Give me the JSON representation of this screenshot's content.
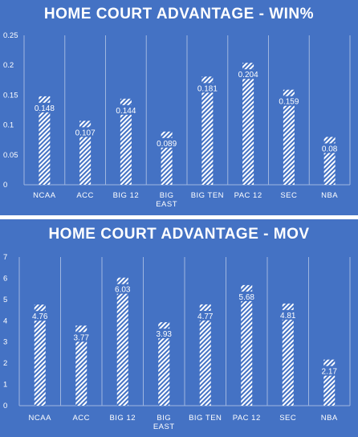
{
  "colors": {
    "background": "#4472c4",
    "bar_fill": "#ffffff",
    "gridline": "#9fb6e0",
    "text": "#ffffff"
  },
  "chart_data": [
    {
      "type": "bar",
      "title": "HOME COURT ADVANTAGE - WIN%",
      "categories": [
        "NCAA",
        "ACC",
        "BIG 12",
        "BIG EAST",
        "BIG TEN",
        "PAC 12",
        "SEC",
        "NBA"
      ],
      "values": [
        0.148,
        0.107,
        0.144,
        0.089,
        0.181,
        0.204,
        0.159,
        0.08
      ],
      "data_labels": [
        "0.148",
        "0.107",
        "0.144",
        "0.089",
        "0.181",
        "0.204",
        "0.159",
        "0.08"
      ],
      "y_ticks": [
        "0",
        "0.05",
        "0.1",
        "0.15",
        "0.2",
        "0.25"
      ],
      "ylim": [
        0,
        0.25
      ],
      "xlabel": "",
      "ylabel": "",
      "bar_pattern": "diagonal-hatch",
      "grid": "vertical-category-separators"
    },
    {
      "type": "bar",
      "title": "HOME COURT ADVANTAGE - MOV",
      "categories": [
        "NCAA",
        "ACC",
        "BIG 12",
        "BIG EAST",
        "BIG TEN",
        "PAC 12",
        "SEC",
        "NBA"
      ],
      "values": [
        4.76,
        3.77,
        6.03,
        3.93,
        4.77,
        5.68,
        4.81,
        2.17
      ],
      "data_labels": [
        "4.76",
        "3.77",
        "6.03",
        "3.93",
        "4.77",
        "5.68",
        "4.81",
        "2.17"
      ],
      "y_ticks": [
        "0",
        "1",
        "2",
        "3",
        "4",
        "5",
        "6",
        "7"
      ],
      "ylim": [
        0,
        7
      ],
      "xlabel": "",
      "ylabel": "",
      "bar_pattern": "diagonal-hatch",
      "grid": "vertical-category-separators"
    }
  ]
}
